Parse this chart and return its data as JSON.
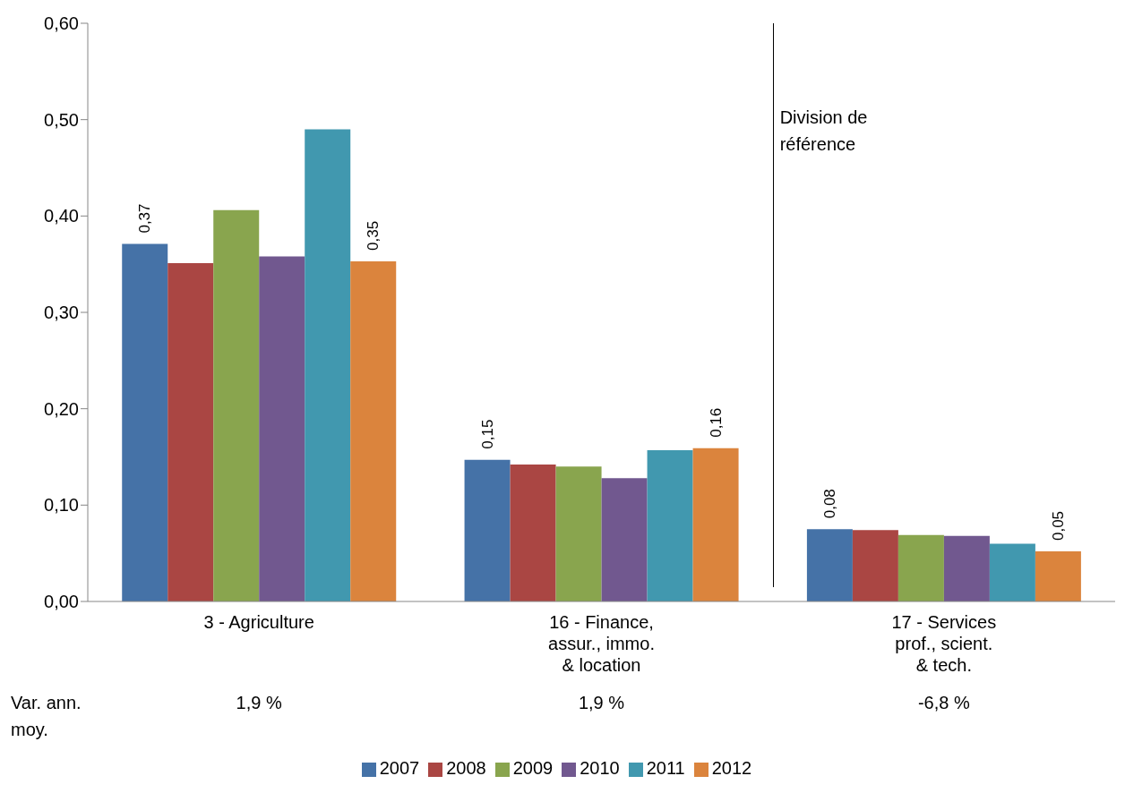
{
  "chart_data": {
    "type": "bar",
    "categories": [
      "3 - Agriculture",
      "16 - Finance,\nassur., immo.\n& location",
      "17 - Services\nprof., scient.\n& tech."
    ],
    "series": [
      {
        "name": "2007",
        "color": "#4572a7",
        "values": [
          0.371,
          0.147,
          0.075
        ],
        "value_labels": [
          "0,37",
          "0,15",
          "0,08"
        ]
      },
      {
        "name": "2008",
        "color": "#aa4643",
        "values": [
          0.351,
          0.142,
          0.074
        ]
      },
      {
        "name": "2009",
        "color": "#89a54e",
        "values": [
          0.406,
          0.14,
          0.069
        ]
      },
      {
        "name": "2010",
        "color": "#71588f",
        "values": [
          0.358,
          0.128,
          0.068
        ]
      },
      {
        "name": "2011",
        "color": "#4198af",
        "values": [
          0.49,
          0.157,
          0.06
        ]
      },
      {
        "name": "2012",
        "color": "#db843d",
        "values": [
          0.353,
          0.159,
          0.052
        ],
        "value_labels": [
          "0,35",
          "0,16",
          "0,05"
        ]
      }
    ],
    "ylim": [
      0,
      0.6
    ],
    "yticks": [
      {
        "value": 0,
        "label": "0,00"
      },
      {
        "value": 0.1,
        "label": "0,10"
      },
      {
        "value": 0.2,
        "label": "0,20"
      },
      {
        "value": 0.3,
        "label": "0,30"
      },
      {
        "value": 0.4,
        "label": "0,40"
      },
      {
        "value": 0.5,
        "label": "0,50"
      },
      {
        "value": 0.6,
        "label": "0,60"
      }
    ],
    "ref_lines": [
      {
        "axis": "x",
        "value": "17 - Services\nprof., scient.\n& tech.",
        "label": "Division de\nréférence",
        "color": "#000000"
      }
    ],
    "annotations": [
      "Var. ann. moy.",
      "1,9 %",
      "1,9 %",
      "-6,8 %"
    ],
    "grid": false,
    "legend": "bottom"
  }
}
